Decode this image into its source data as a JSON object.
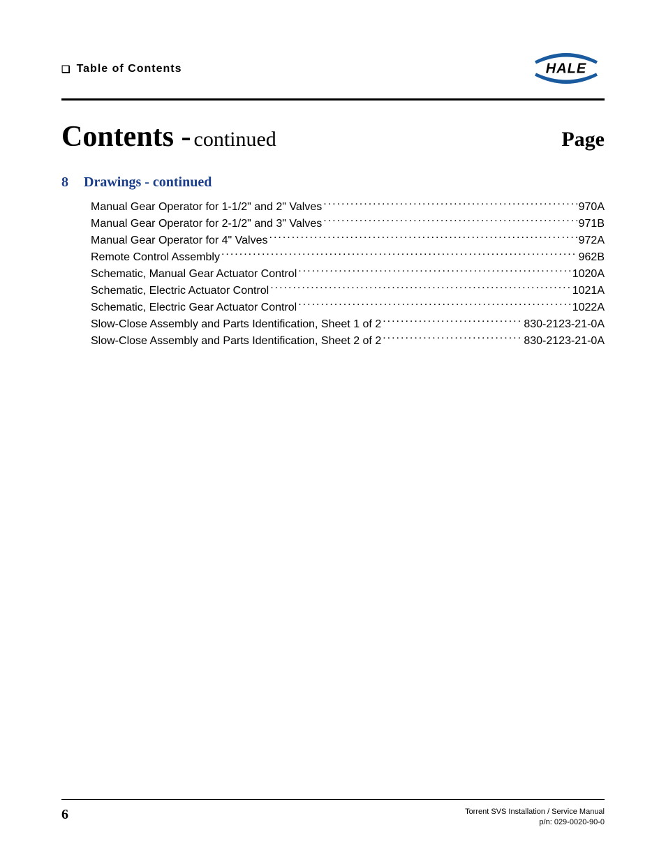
{
  "header": {
    "section_label": "Table of Contents"
  },
  "title": {
    "contents": "Contents -",
    "continued": "continued",
    "page_label": "Page"
  },
  "section": {
    "number": "8",
    "heading": "Drawings - continued"
  },
  "toc": [
    {
      "label": "Manual Gear Operator for 1-1/2\" and 2\" Valves",
      "page": "970A"
    },
    {
      "label": "Manual Gear Operator for 2-1/2\" and 3\" Valves",
      "page": "971B"
    },
    {
      "label": "Manual Gear Operator for 4\" Valves",
      "page": "972A"
    },
    {
      "label": "Remote Control Assembly",
      "page": "962B"
    },
    {
      "label": "Schematic, Manual Gear Actuator Control",
      "page": "1020A"
    },
    {
      "label": "Schematic, Electric Actuator Control",
      "page": "1021A"
    },
    {
      "label": "Schematic, Electric Gear Actuator Control",
      "page": "1022A"
    },
    {
      "label": "Slow-Close Assembly and Parts Identification, Sheet 1 of 2",
      "page": "830-2123-21-0A"
    },
    {
      "label": "Slow-Close Assembly and Parts Identification, Sheet 2 of 2",
      "page": "830-2123-21-0A"
    }
  ],
  "footer": {
    "page_number": "6",
    "manual_title": "Torrent SVS Installation / Service Manual",
    "part_number": "p/n: 029-0020-90-0"
  },
  "logo": {
    "text": "HALE",
    "arc_color": "#1a5a9e",
    "text_color": "#000000"
  }
}
